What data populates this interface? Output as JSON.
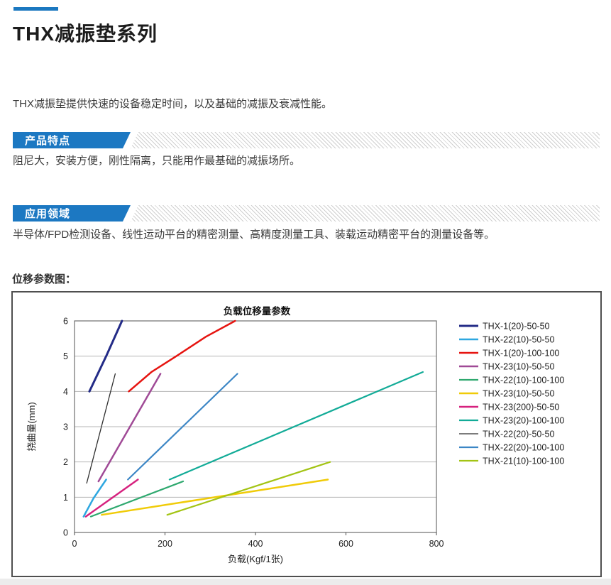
{
  "page": {
    "title": "THX减振垫系列",
    "intro": "THX减振垫提供快速的设备稳定时间，以及基础的减振及衰减性能。",
    "accent_color": "#1b78c0",
    "sections": [
      {
        "heading": "产品特点",
        "body": "阻尼大，安装方便，刚性隔离，只能用作最基础的减振场所。"
      },
      {
        "heading": "应用领域",
        "body": "半导体/FPD检测设备、线性运动平台的精密测量、高精度测量工具、装载运动精密平台的测量设备等。"
      }
    ],
    "chart_caption": "位移参数图："
  },
  "chart_data": {
    "type": "line",
    "title": "负载位移量参数",
    "xlabel": "负载(Kgf/1张)",
    "ylabel": "挠曲量(mm)",
    "xlim": [
      0,
      800
    ],
    "ylim": [
      0,
      6
    ],
    "xticks": [
      0,
      200,
      400,
      600,
      800
    ],
    "yticks": [
      0,
      1,
      2,
      3,
      4,
      5,
      6
    ],
    "grid": "horizontal",
    "legend_position": "right",
    "series": [
      {
        "name": "THX-1(20)-50-50",
        "color": "#232b87",
        "width": 3,
        "points": [
          [
            33,
            4.0
          ],
          [
            70,
            5.0
          ],
          [
            105,
            6.0
          ]
        ]
      },
      {
        "name": "THX-22(10)-50-50",
        "color": "#2ea7e0",
        "width": 2.5,
        "points": [
          [
            20,
            0.45
          ],
          [
            42,
            0.97
          ],
          [
            70,
            1.5
          ]
        ]
      },
      {
        "name": "THX-1(20)-100-100",
        "color": "#e61410",
        "width": 2.5,
        "points": [
          [
            120,
            4.0
          ],
          [
            170,
            4.55
          ],
          [
            225,
            5.0
          ],
          [
            290,
            5.55
          ],
          [
            355,
            6.0
          ]
        ]
      },
      {
        "name": "THX-23(10)-50-50",
        "color": "#a04a96",
        "width": 2.5,
        "points": [
          [
            53,
            1.45
          ],
          [
            190,
            4.5
          ]
        ]
      },
      {
        "name": "THX-22(10)-100-100",
        "color": "#2ea86e",
        "width": 2.2,
        "points": [
          [
            36,
            0.45
          ],
          [
            240,
            1.45
          ]
        ]
      },
      {
        "name": "THX-23(10)-50-50",
        "color": "#f0cb08",
        "width": 2.5,
        "points": [
          [
            60,
            0.5
          ],
          [
            560,
            1.5
          ]
        ]
      },
      {
        "name": "THX-23(200)-50-50",
        "color": "#d6217e",
        "width": 2.5,
        "points": [
          [
            25,
            0.45
          ],
          [
            140,
            1.5
          ]
        ]
      },
      {
        "name": "THX-23(20)-100-100",
        "color": "#12ab97",
        "width": 2.2,
        "points": [
          [
            210,
            1.5
          ],
          [
            770,
            4.55
          ]
        ]
      },
      {
        "name": "THX-22(20)-50-50",
        "color": "#2e2e2e",
        "width": 1.3,
        "points": [
          [
            27,
            1.4
          ],
          [
            90,
            4.5
          ]
        ]
      },
      {
        "name": "THX-22(20)-100-100",
        "color": "#3c86c5",
        "width": 2.2,
        "points": [
          [
            118,
            1.5
          ],
          [
            360,
            4.5
          ]
        ]
      },
      {
        "name": "THX-21(10)-100-100",
        "color": "#a3c414",
        "width": 2.2,
        "points": [
          [
            205,
            0.5
          ],
          [
            565,
            2.0
          ]
        ]
      }
    ]
  }
}
